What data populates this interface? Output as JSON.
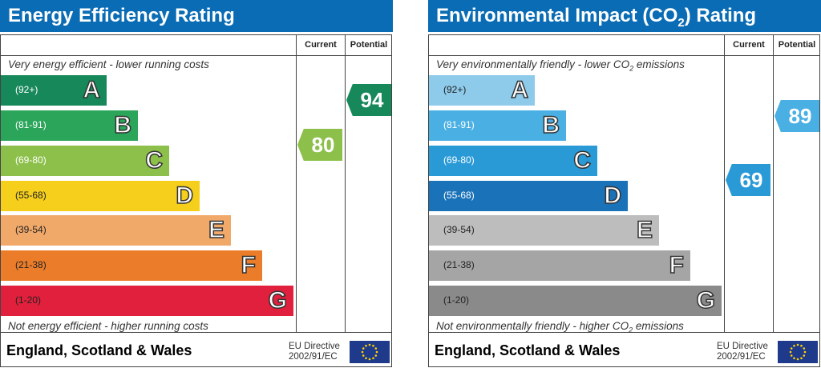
{
  "chart_data": [
    {
      "type": "table",
      "title": "Energy Efficiency Rating",
      "columns": [
        "Current",
        "Potential"
      ],
      "top_note": "Very energy efficient - lower running costs",
      "bottom_note": "Not energy efficient - higher running costs",
      "bands": [
        {
          "range": "(92+)",
          "letter": "A",
          "color": "#17885a"
        },
        {
          "range": "(81-91)",
          "letter": "B",
          "color": "#2aa55a"
        },
        {
          "range": "(69-80)",
          "letter": "C",
          "color": "#8cc04a"
        },
        {
          "range": "(55-68)",
          "letter": "D",
          "color": "#f5cf1c"
        },
        {
          "range": "(39-54)",
          "letter": "E",
          "color": "#f1a96a"
        },
        {
          "range": "(21-38)",
          "letter": "F",
          "color": "#eb7d2a"
        },
        {
          "range": "(1-20)",
          "letter": "G",
          "color": "#e0203c"
        }
      ],
      "current": {
        "value": 80,
        "color": "#8cc04a"
      },
      "potential": {
        "value": 94,
        "color": "#17885a"
      },
      "footer": "England, Scotland & Wales",
      "directive": [
        "EU Directive",
        "2002/91/EC"
      ]
    },
    {
      "type": "table",
      "title_parts": [
        "Environmental Impact (CO",
        "2",
        ") Rating"
      ],
      "columns": [
        "Current",
        "Potential"
      ],
      "top_note_parts": [
        "Very environmentally friendly - lower CO",
        "2",
        " emissions"
      ],
      "bottom_note_parts": [
        "Not environmentally friendly - higher CO",
        "2",
        " emissions"
      ],
      "bands": [
        {
          "range": "(92+)",
          "letter": "A",
          "color": "#8ecbea"
        },
        {
          "range": "(81-91)",
          "letter": "B",
          "color": "#4ab0e3"
        },
        {
          "range": "(69-80)",
          "letter": "C",
          "color": "#2a9ad6"
        },
        {
          "range": "(55-68)",
          "letter": "D",
          "color": "#1a72b8"
        },
        {
          "range": "(39-54)",
          "letter": "E",
          "color": "#bdbdbd"
        },
        {
          "range": "(21-38)",
          "letter": "F",
          "color": "#a5a5a5"
        },
        {
          "range": "(1-20)",
          "letter": "G",
          "color": "#8a8a8a"
        }
      ],
      "current": {
        "value": 69,
        "color": "#2a9ad6"
      },
      "potential": {
        "value": 89,
        "color": "#4ab0e3"
      },
      "footer": "England, Scotland & Wales",
      "directive": [
        "EU Directive",
        "2002/91/EC"
      ]
    }
  ]
}
